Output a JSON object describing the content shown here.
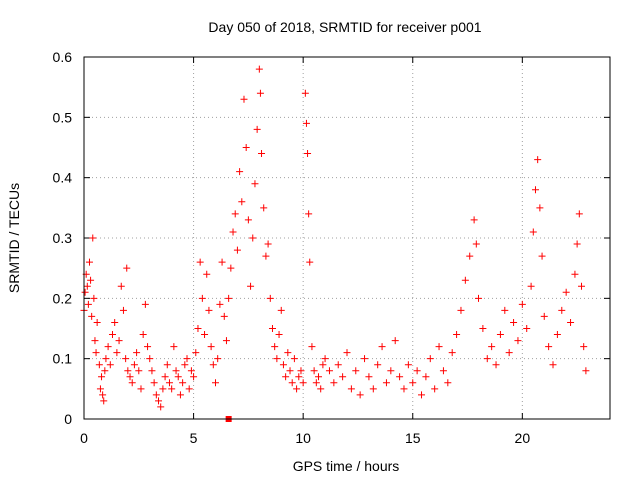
{
  "chart_data": {
    "type": "scatter",
    "title": "Day 050 of 2018, SRMTID for receiver p001",
    "xlabel": "GPS time / hours",
    "ylabel": "SRMTID / TECUs",
    "xlim": [
      0,
      24
    ],
    "ylim": [
      0,
      0.6
    ],
    "x_ticks": [
      0,
      5,
      10,
      15,
      20
    ],
    "x_tick_labels": [
      "0",
      "5",
      "10",
      "15",
      "20"
    ],
    "y_ticks": [
      0,
      0.1,
      0.2,
      0.3,
      0.4,
      0.5,
      0.6
    ],
    "y_tick_labels": [
      "0",
      "0.1",
      "0.2",
      "0.3",
      "0.4",
      "0.5",
      "0.6"
    ],
    "grid": true,
    "marker": "plus",
    "color": "#ff0000",
    "series": [
      {
        "name": "SRMTID",
        "points": [
          [
            0.0,
            0.18
          ],
          [
            0.05,
            0.21
          ],
          [
            0.1,
            0.24
          ],
          [
            0.15,
            0.22
          ],
          [
            0.2,
            0.19
          ],
          [
            0.25,
            0.26
          ],
          [
            0.3,
            0.23
          ],
          [
            0.35,
            0.17
          ],
          [
            0.4,
            0.3
          ],
          [
            0.45,
            0.2
          ],
          [
            0.5,
            0.13
          ],
          [
            0.55,
            0.11
          ],
          [
            0.6,
            0.16
          ],
          [
            0.7,
            0.09
          ],
          [
            0.75,
            0.05
          ],
          [
            0.8,
            0.07
          ],
          [
            0.85,
            0.04
          ],
          [
            0.9,
            0.03
          ],
          [
            0.95,
            0.08
          ],
          [
            1.0,
            0.1
          ],
          [
            1.1,
            0.12
          ],
          [
            1.2,
            0.09
          ],
          [
            1.3,
            0.14
          ],
          [
            1.4,
            0.16
          ],
          [
            1.5,
            0.11
          ],
          [
            1.6,
            0.13
          ],
          [
            1.7,
            0.22
          ],
          [
            1.8,
            0.18
          ],
          [
            1.9,
            0.1
          ],
          [
            1.95,
            0.25
          ],
          [
            2.0,
            0.08
          ],
          [
            2.1,
            0.07
          ],
          [
            2.2,
            0.06
          ],
          [
            2.3,
            0.09
          ],
          [
            2.4,
            0.11
          ],
          [
            2.5,
            0.08
          ],
          [
            2.6,
            0.05
          ],
          [
            2.7,
            0.14
          ],
          [
            2.8,
            0.19
          ],
          [
            2.9,
            0.12
          ],
          [
            3.0,
            0.1
          ],
          [
            3.1,
            0.08
          ],
          [
            3.2,
            0.06
          ],
          [
            3.3,
            0.04
          ],
          [
            3.4,
            0.03
          ],
          [
            3.5,
            0.02
          ],
          [
            3.6,
            0.05
          ],
          [
            3.7,
            0.07
          ],
          [
            3.8,
            0.09
          ],
          [
            3.9,
            0.06
          ],
          [
            4.0,
            0.05
          ],
          [
            4.1,
            0.12
          ],
          [
            4.2,
            0.08
          ],
          [
            4.3,
            0.07
          ],
          [
            4.4,
            0.04
          ],
          [
            4.5,
            0.06
          ],
          [
            4.6,
            0.09
          ],
          [
            4.7,
            0.1
          ],
          [
            4.8,
            0.05
          ],
          [
            4.9,
            0.08
          ],
          [
            5.0,
            0.07
          ],
          [
            5.1,
            0.11
          ],
          [
            5.2,
            0.15
          ],
          [
            5.3,
            0.26
          ],
          [
            5.4,
            0.2
          ],
          [
            5.5,
            0.14
          ],
          [
            5.6,
            0.24
          ],
          [
            5.7,
            0.18
          ],
          [
            5.8,
            0.12
          ],
          [
            5.9,
            0.09
          ],
          [
            6.0,
            0.06
          ],
          [
            6.1,
            0.1
          ],
          [
            6.2,
            0.19
          ],
          [
            6.3,
            0.26
          ],
          [
            6.4,
            0.17
          ],
          [
            6.5,
            0.13
          ],
          [
            6.6,
            0.2
          ],
          [
            6.7,
            0.25
          ],
          [
            6.8,
            0.31
          ],
          [
            6.9,
            0.34
          ],
          [
            7.0,
            0.28
          ],
          [
            7.1,
            0.41
          ],
          [
            7.2,
            0.36
          ],
          [
            7.3,
            0.53
          ],
          [
            7.4,
            0.45
          ],
          [
            7.5,
            0.33
          ],
          [
            7.6,
            0.22
          ],
          [
            7.7,
            0.3
          ],
          [
            7.8,
            0.39
          ],
          [
            7.9,
            0.48
          ],
          [
            8.0,
            0.58
          ],
          [
            8.05,
            0.54
          ],
          [
            8.1,
            0.44
          ],
          [
            8.2,
            0.35
          ],
          [
            8.3,
            0.27
          ],
          [
            8.4,
            0.29
          ],
          [
            8.5,
            0.2
          ],
          [
            8.6,
            0.15
          ],
          [
            8.7,
            0.12
          ],
          [
            8.8,
            0.1
          ],
          [
            8.9,
            0.14
          ],
          [
            9.0,
            0.18
          ],
          [
            9.1,
            0.09
          ],
          [
            9.2,
            0.07
          ],
          [
            9.3,
            0.11
          ],
          [
            9.4,
            0.08
          ],
          [
            9.5,
            0.06
          ],
          [
            9.6,
            0.1
          ],
          [
            9.7,
            0.05
          ],
          [
            9.8,
            0.07
          ],
          [
            9.9,
            0.08
          ],
          [
            10.0,
            0.06
          ],
          [
            10.1,
            0.54
          ],
          [
            10.15,
            0.49
          ],
          [
            10.2,
            0.44
          ],
          [
            10.25,
            0.34
          ],
          [
            10.3,
            0.26
          ],
          [
            10.4,
            0.12
          ],
          [
            10.5,
            0.08
          ],
          [
            10.6,
            0.06
          ],
          [
            10.7,
            0.07
          ],
          [
            10.8,
            0.05
          ],
          [
            10.9,
            0.09
          ],
          [
            11.0,
            0.1
          ],
          [
            11.2,
            0.08
          ],
          [
            11.4,
            0.06
          ],
          [
            11.6,
            0.09
          ],
          [
            11.8,
            0.07
          ],
          [
            12.0,
            0.11
          ],
          [
            12.2,
            0.05
          ],
          [
            12.4,
            0.08
          ],
          [
            12.6,
            0.04
          ],
          [
            12.8,
            0.1
          ],
          [
            13.0,
            0.07
          ],
          [
            13.2,
            0.05
          ],
          [
            13.4,
            0.09
          ],
          [
            13.6,
            0.12
          ],
          [
            13.8,
            0.06
          ],
          [
            14.0,
            0.08
          ],
          [
            14.2,
            0.13
          ],
          [
            14.4,
            0.07
          ],
          [
            14.6,
            0.05
          ],
          [
            14.8,
            0.09
          ],
          [
            15.0,
            0.06
          ],
          [
            15.2,
            0.08
          ],
          [
            15.4,
            0.04
          ],
          [
            15.6,
            0.07
          ],
          [
            15.8,
            0.1
          ],
          [
            16.0,
            0.05
          ],
          [
            16.2,
            0.12
          ],
          [
            16.4,
            0.08
          ],
          [
            16.6,
            0.06
          ],
          [
            16.8,
            0.11
          ],
          [
            17.0,
            0.14
          ],
          [
            17.2,
            0.18
          ],
          [
            17.4,
            0.23
          ],
          [
            17.6,
            0.27
          ],
          [
            17.8,
            0.33
          ],
          [
            17.9,
            0.29
          ],
          [
            18.0,
            0.2
          ],
          [
            18.2,
            0.15
          ],
          [
            18.4,
            0.1
          ],
          [
            18.6,
            0.12
          ],
          [
            18.8,
            0.09
          ],
          [
            19.0,
            0.14
          ],
          [
            19.2,
            0.18
          ],
          [
            19.4,
            0.11
          ],
          [
            19.6,
            0.16
          ],
          [
            19.8,
            0.13
          ],
          [
            20.0,
            0.19
          ],
          [
            20.2,
            0.15
          ],
          [
            20.4,
            0.22
          ],
          [
            20.5,
            0.31
          ],
          [
            20.6,
            0.38
          ],
          [
            20.7,
            0.43
          ],
          [
            20.8,
            0.35
          ],
          [
            20.9,
            0.27
          ],
          [
            21.0,
            0.17
          ],
          [
            21.2,
            0.12
          ],
          [
            21.4,
            0.09
          ],
          [
            21.6,
            0.14
          ],
          [
            21.8,
            0.18
          ],
          [
            22.0,
            0.21
          ],
          [
            22.2,
            0.16
          ],
          [
            22.4,
            0.24
          ],
          [
            22.5,
            0.29
          ],
          [
            22.6,
            0.34
          ],
          [
            22.7,
            0.22
          ],
          [
            22.8,
            0.12
          ],
          [
            22.9,
            0.08
          ]
        ]
      }
    ],
    "annotations": [
      {
        "type": "filled-square",
        "x": 6.6,
        "y": 0.0,
        "color": "#ff0000"
      }
    ]
  }
}
